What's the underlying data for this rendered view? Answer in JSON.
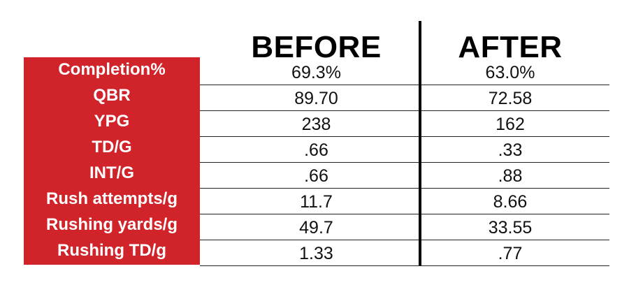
{
  "chart_data": {
    "type": "table",
    "columns": [
      "BEFORE",
      "AFTER"
    ],
    "rows": [
      {
        "label": "Completion%",
        "before": "69.3%",
        "after": "63.0%"
      },
      {
        "label": "QBR",
        "before": "89.70",
        "after": "72.58"
      },
      {
        "label": "YPG",
        "before": "238",
        "after": "162"
      },
      {
        "label": "TD/G",
        "before": ".66",
        "after": ".33"
      },
      {
        "label": "INT/G",
        "before": ".66",
        "after": ".88"
      },
      {
        "label": "Rush attempts/g",
        "before": "11.7",
        "after": "8.66"
      },
      {
        "label": "Rushing yards/g",
        "before": "49.7",
        "after": "33.55"
      },
      {
        "label": "Rushing TD/g",
        "before": "1.33",
        "after": ".77"
      }
    ]
  },
  "colors": {
    "label_background": "#d0232a",
    "label_text": "#ffffff",
    "value_text": "#111111",
    "rule_lines": "#222222"
  }
}
